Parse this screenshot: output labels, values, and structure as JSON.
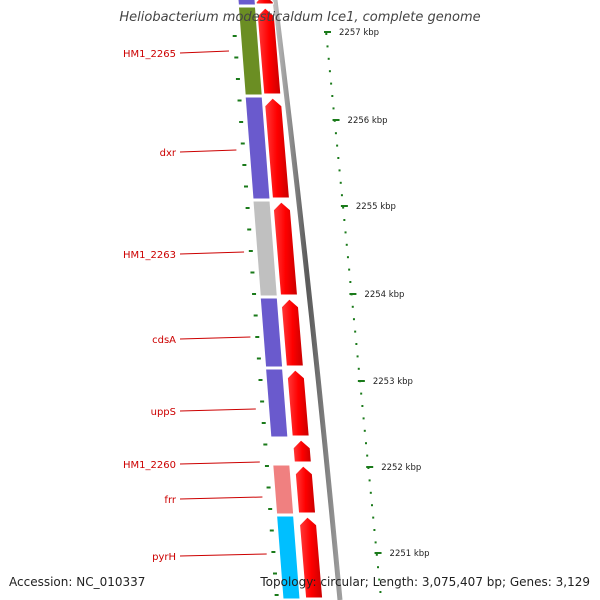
{
  "title": "Heliobacterium modesticaldum Ice1, complete genome",
  "footer": {
    "accession": "Accession: NC_010337",
    "topology": "Topology: circular; Length: 3,075,407 bp; Genes: 3,129"
  },
  "colors": {
    "cds_arrow": "#ff0000",
    "label_text": "#cc0000",
    "tick": "#1a7a1a",
    "backbone": "#8a8a8a"
  },
  "scale": {
    "unit": "kbp",
    "labels": [
      "2257 kbp",
      "2256 kbp",
      "2255 kbp",
      "2254 kbp",
      "2253 kbp",
      "2252 kbp",
      "2251 kbp"
    ]
  },
  "genes": [
    {
      "label": "",
      "color": "#6a5acd"
    },
    {
      "label": "HM1_2265",
      "color": "#6b8e23"
    },
    {
      "label": "dxr",
      "color": "#6a5acd"
    },
    {
      "label": "HM1_2263",
      "color": "#c0c0c0"
    },
    {
      "label": "cdsA",
      "color": "#6a5acd"
    },
    {
      "label": "uppS",
      "color": "#6a5acd"
    },
    {
      "label": "HM1_2260",
      "color": "#ffffff"
    },
    {
      "label": "frr",
      "color": "#f08080"
    },
    {
      "label": "pyrH",
      "color": "#00bfff"
    }
  ]
}
